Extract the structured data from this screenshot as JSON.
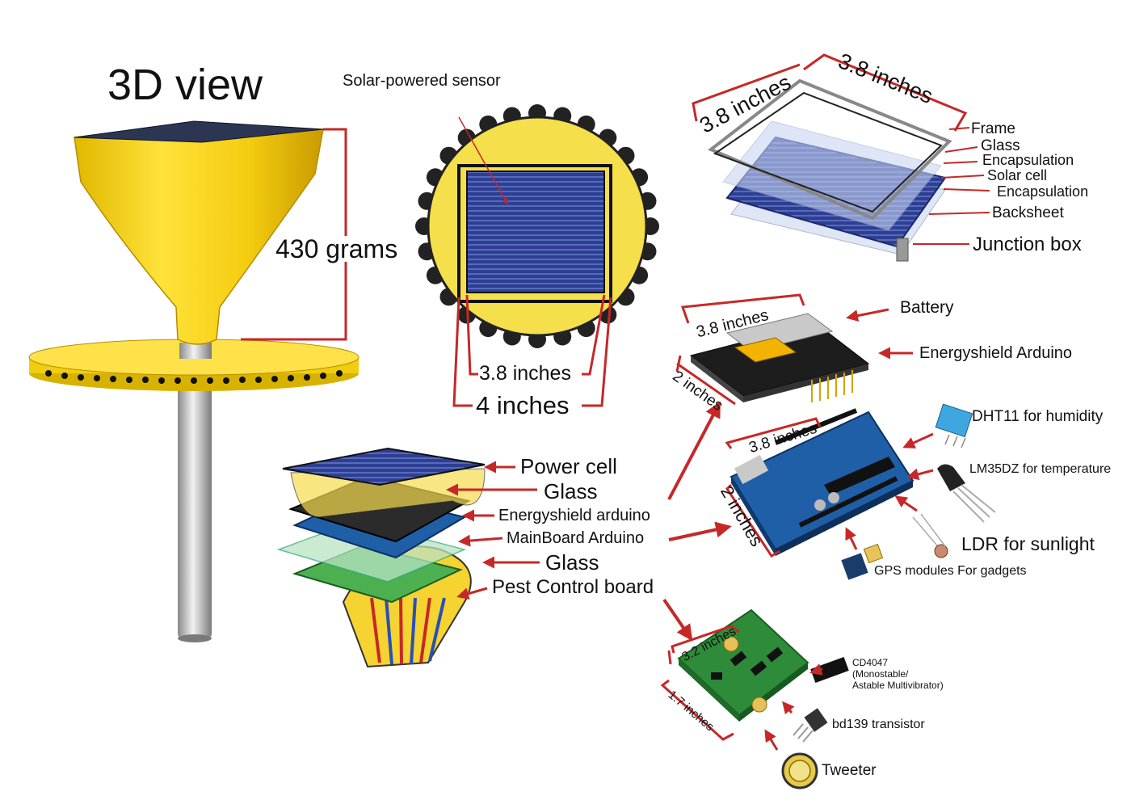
{
  "title": "3D view",
  "sensor_label": "Solar-powered sensor",
  "weight_label": "430 grams",
  "solar_disc": {
    "inner_dim": "3.8 inches",
    "outer_dim": "4 inches"
  },
  "panel": {
    "dim_left": "3.8 inches",
    "dim_top": "3.8 inches",
    "layers": [
      "Frame",
      "Glass",
      "Encapsulation",
      "Solar cell",
      "Encapsulation",
      "Backsheet",
      "Junction box"
    ]
  },
  "stack": {
    "layers": [
      "Power cell",
      "Glass",
      "Energyshield arduino",
      "MainBoard Arduino",
      "Glass",
      "Pest Control board"
    ]
  },
  "energyshield": {
    "dim_width": "3.8 inches",
    "dim_depth": "2 inches",
    "battery_label": "Battery",
    "shield_label": "Energyshield Arduino"
  },
  "mainboard": {
    "dim_width": "3.8 inches",
    "dim_depth": "2 inches",
    "sensors": [
      "DHT11 for humidity",
      "LM35DZ for temperature",
      "LDR for sunlight",
      "GPS modules For gadgets"
    ]
  },
  "pest_board": {
    "dim_width": "3.2 inches",
    "dim_depth": "1.7 inches",
    "ic_label": "CD4047\n(Monostable/\nAstable Multivibrator)",
    "transistor_label": "bd139 transistor",
    "tweeter_label": "Tweeter"
  },
  "colors": {
    "accent_red": "#c62828",
    "device_yellow": "#f2d31a",
    "solar_blue": "#2c3f8f",
    "board_green": "#2e8b3a",
    "arduino_blue": "#1f5fa8"
  }
}
